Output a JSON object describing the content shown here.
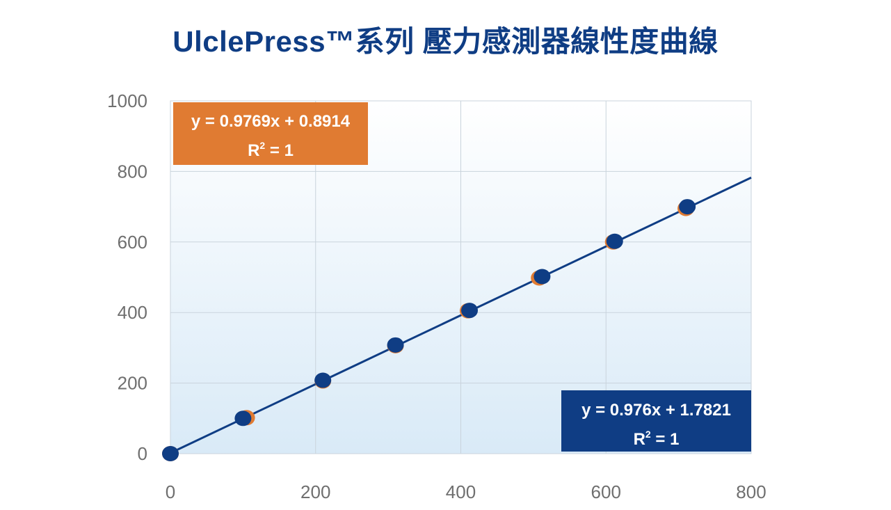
{
  "title": "UlclePress™系列 壓力感測器線性度曲線",
  "colors": {
    "title": "#0f3d84",
    "navy": "#0f3d84",
    "orange": "#e07b32",
    "grid": "#c9d3dc",
    "tick": "#6f6f6f"
  },
  "chart_data": {
    "type": "scatter",
    "xlim": [
      0,
      800
    ],
    "ylim": [
      0,
      1000
    ],
    "x_ticks": [
      "0",
      "200",
      "400",
      "600",
      "800"
    ],
    "y_ticks": [
      "0",
      "200",
      "400",
      "600",
      "800",
      "1000"
    ],
    "grid": true,
    "series": [
      {
        "color": "#e07b32",
        "points": [
          [
            0,
            0
          ],
          [
            105,
            102
          ],
          [
            210,
            206
          ],
          [
            310,
            306
          ],
          [
            410,
            405
          ],
          [
            508,
            498
          ],
          [
            610,
            600
          ],
          [
            710,
            695
          ]
        ],
        "trendline": {
          "slope": 0.9769,
          "intercept": 0.8914
        }
      },
      {
        "color": "#0f3d84",
        "points": [
          [
            0,
            0
          ],
          [
            100,
            100
          ],
          [
            210,
            208
          ],
          [
            310,
            308
          ],
          [
            412,
            406
          ],
          [
            512,
            502
          ],
          [
            612,
            602
          ],
          [
            712,
            700
          ]
        ],
        "trendline": {
          "slope": 0.976,
          "intercept": 1.7821
        }
      }
    ],
    "annotations": [
      {
        "equation": "y = 0.9769x + 0.8914",
        "r2_prefix": "R",
        "r2_exp": "2",
        "r2_value": " = 1",
        "color": "#e07b32",
        "position": "top-left"
      },
      {
        "equation": "y = 0.976x + 1.7821",
        "r2_prefix": "R",
        "r2_exp": "2",
        "r2_value": " = 1",
        "color": "#0f3d84",
        "position": "bottom-right"
      }
    ]
  }
}
